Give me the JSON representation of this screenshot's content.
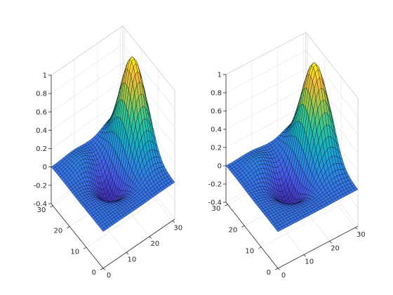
{
  "chart_data": [
    {
      "type": "surface",
      "title": "",
      "xlabel": "",
      "ylabel": "",
      "zlabel": "",
      "x_ticks": [
        0,
        10,
        20,
        30
      ],
      "y_ticks": [
        0,
        10,
        20,
        30
      ],
      "z_ticks": [
        -0.4,
        -0.2,
        0,
        0.2,
        0.4,
        0.6,
        0.8,
        1
      ],
      "x_tick_labels": [
        "0",
        "10",
        "20",
        "30"
      ],
      "y_tick_labels": [
        "0",
        "10",
        "20",
        "30"
      ],
      "z_tick_labels": [
        "-0.4",
        "-0.2",
        "0",
        "0.2",
        "0.4",
        "0.6",
        "0.8",
        "1"
      ],
      "xlim": [
        0,
        31
      ],
      "ylim": [
        0,
        31
      ],
      "zlim": [
        -0.4,
        1
      ],
      "grid": true,
      "colormap": "parula",
      "mesh_edge_color": "#000000",
      "function": "bump surface peaking near z=1 at high x, mid-high y; trough near z=-0.3"
    },
    {
      "type": "surface",
      "title": "",
      "xlabel": "",
      "ylabel": "",
      "zlabel": "",
      "x_ticks": [
        0,
        10,
        20,
        30
      ],
      "y_ticks": [
        0,
        10,
        20,
        30
      ],
      "z_ticks": [
        -0.4,
        -0.2,
        0,
        0.2,
        0.4,
        0.6,
        0.8,
        1
      ],
      "x_tick_labels": [
        "0",
        "10",
        "20",
        "30"
      ],
      "y_tick_labels": [
        "0",
        "10",
        "20",
        "30"
      ],
      "z_tick_labels": [
        "-0.4",
        "-0.2",
        "0",
        "0.2",
        "0.4",
        "0.6",
        "0.8",
        "1"
      ],
      "xlim": [
        0,
        31
      ],
      "ylim": [
        0,
        31
      ],
      "zlim": [
        -0.4,
        1
      ],
      "grid": true,
      "colormap": "parula",
      "mesh_edge_color": "#000000",
      "function": "bump surface peaking near z=1 at high x, mid-high y; trough near z=-0.3"
    }
  ]
}
